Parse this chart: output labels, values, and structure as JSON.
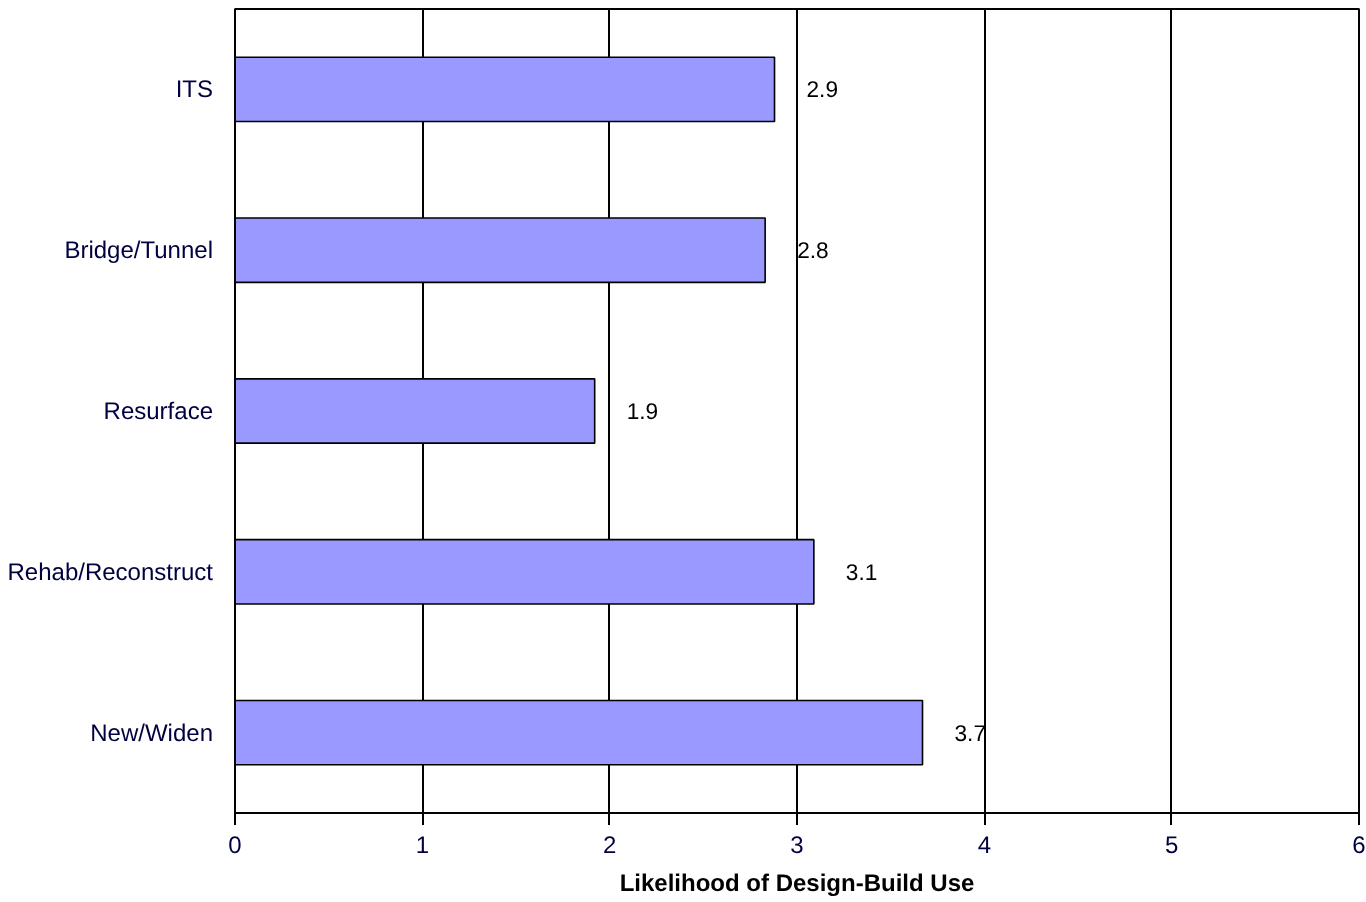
{
  "chart_data": {
    "type": "bar",
    "orientation": "horizontal",
    "xlabel": "Likelihood of Design-Build Use",
    "categories": [
      "ITS",
      "Bridge/Tunnel",
      "Resurface",
      "Rehab/Reconstruct",
      "New/Widen"
    ],
    "values": [
      2.88,
      2.83,
      1.92,
      3.09,
      3.67
    ],
    "value_labels": [
      "2.9",
      "2.8",
      "1.9",
      "3.1",
      "3.7"
    ],
    "color": "#9999ff",
    "xlim": [
      0,
      6
    ],
    "xticks": [
      0,
      1,
      2,
      3,
      4,
      5,
      6
    ],
    "grid": "x"
  }
}
